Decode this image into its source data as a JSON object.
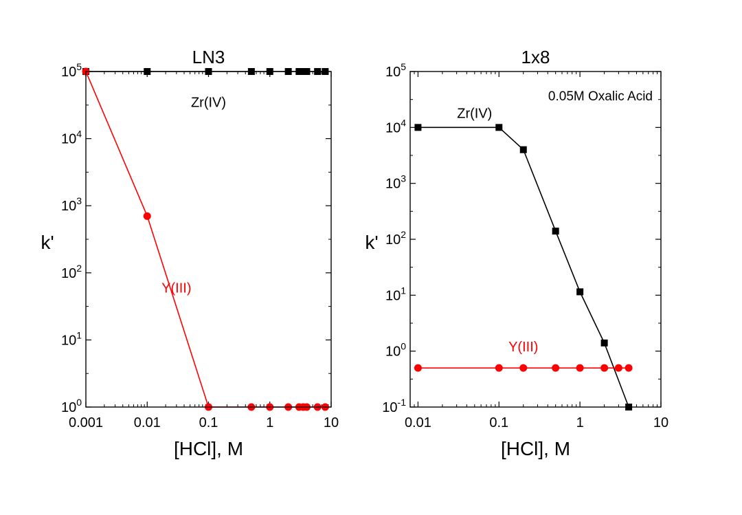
{
  "chart_data": [
    {
      "type": "line",
      "title": "LN3",
      "xlabel": "[HCl], M",
      "ylabel": "k'",
      "xscale": "log",
      "yscale": "log",
      "xlim": [
        0.001,
        10
      ],
      "ylim": [
        1,
        100000
      ],
      "xticks": [
        "0.001",
        "0.01",
        "0.1",
        "1",
        "10"
      ],
      "yticks": [
        {
          "base": "10",
          "exp": "0"
        },
        {
          "base": "10",
          "exp": "1"
        },
        {
          "base": "10",
          "exp": "2"
        },
        {
          "base": "10",
          "exp": "3"
        },
        {
          "base": "10",
          "exp": "4"
        },
        {
          "base": "10",
          "exp": "5"
        }
      ],
      "annotation": "",
      "series": [
        {
          "name": "Zr(IV)",
          "color": "#000000",
          "marker": "square",
          "x": [
            0.001,
            0.01,
            0.1,
            0.5,
            1,
            2,
            3,
            3.5,
            4,
            6,
            8
          ],
          "y": [
            100000,
            100000,
            100000,
            100000,
            100000,
            100000,
            100000,
            100000,
            100000,
            100000,
            100000
          ],
          "label_x": 0.1,
          "label_y": 35000
        },
        {
          "name": "Y(III)",
          "color": "#ff0000",
          "marker": "circle",
          "x": [
            0.001,
            0.01,
            0.1,
            0.5,
            1,
            2,
            3,
            3.5,
            4,
            6,
            8
          ],
          "y": [
            100000,
            700,
            1,
            1,
            1,
            1,
            1,
            1,
            1,
            1,
            1
          ],
          "label_x": 0.03,
          "label_y": 60
        }
      ]
    },
    {
      "type": "line",
      "title": "1x8",
      "xlabel": "[HCl], M",
      "ylabel": "k'",
      "xscale": "log",
      "yscale": "log",
      "xlim": [
        0.008,
        10
      ],
      "ylim": [
        0.1,
        100000
      ],
      "xticks": [
        "0.01",
        "0.1",
        "1",
        "10"
      ],
      "yticks": [
        {
          "base": "10",
          "exp": "-1"
        },
        {
          "base": "10",
          "exp": "0"
        },
        {
          "base": "10",
          "exp": "1"
        },
        {
          "base": "10",
          "exp": "2"
        },
        {
          "base": "10",
          "exp": "3"
        },
        {
          "base": "10",
          "exp": "4"
        },
        {
          "base": "10",
          "exp": "5"
        }
      ],
      "annotation": "0.05M Oxalic Acid",
      "series": [
        {
          "name": "Zr(IV)",
          "color": "#000000",
          "marker": "square",
          "x": [
            0.01,
            0.1,
            0.2,
            0.5,
            1,
            2,
            4
          ],
          "y": [
            10000,
            10000,
            4000,
            140,
            11.5,
            1.4,
            0.1
          ],
          "label_x": 0.05,
          "label_y": 18000
        },
        {
          "name": "Y(III)",
          "color": "#ff0000",
          "marker": "circle",
          "x": [
            0.01,
            0.1,
            0.2,
            0.5,
            1,
            2,
            3,
            4
          ],
          "y": [
            0.5,
            0.5,
            0.5,
            0.5,
            0.5,
            0.5,
            0.5,
            0.5
          ],
          "label_x": 0.2,
          "label_y": 1.2
        }
      ]
    }
  ]
}
